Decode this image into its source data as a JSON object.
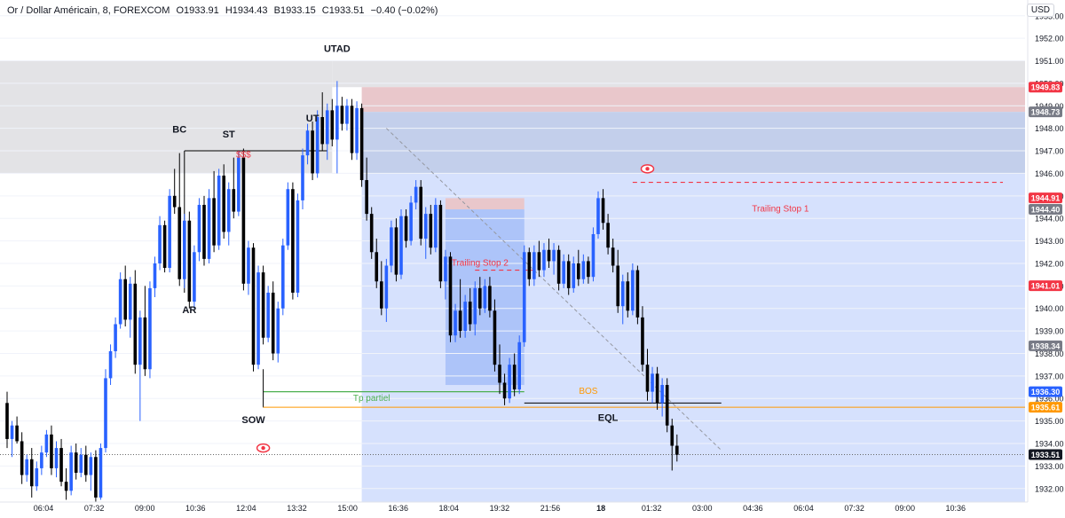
{
  "header": {
    "symbol": "Or / Dollar Américain, 8, FOREXCOM",
    "open": "O1933.91",
    "high": "H1934.43",
    "low": "B1933.15",
    "close": "C1933.51",
    "change": "−0.40 (−0.02%)"
  },
  "currency_button": "USD",
  "colors": {
    "up": "#2962ff",
    "down": "#000000",
    "supply_zone": "#e3e3e6",
    "stop_zone": "#e9c7cb",
    "blue_zone": "#d6e1fd",
    "blue_zone_dark": "#c3cfeb",
    "trade_box": "#9fbaf7",
    "trailing": "#f23645",
    "tp_line": "#4caf50",
    "bos_line": "#ff9800"
  },
  "chart_data": {
    "type": "candlestick",
    "ylim": [
      1931.4,
      1953.7
    ],
    "y_ticks": [
      1932,
      1933,
      1934,
      1935,
      1936,
      1937,
      1938,
      1939,
      1940,
      1941,
      1942,
      1943,
      1944,
      1945,
      1946,
      1947,
      1948,
      1949,
      1950,
      1951,
      1952,
      1953
    ],
    "x_ticks": [
      "06:04",
      "07:32",
      "09:00",
      "10:36",
      "12:04",
      "13:32",
      "15:00",
      "16:36",
      "18:04",
      "19:32",
      "21:56",
      "18",
      "01:32",
      "03:00",
      "04:36",
      "06:04",
      "07:32",
      "09:00",
      "10:36"
    ],
    "price_labels": [
      {
        "value": 1949.83,
        "text": "1949.83",
        "color": "#f23645"
      },
      {
        "value": 1948.73,
        "text": "1948.73",
        "color": "#787b86"
      },
      {
        "value": 1944.91,
        "text": "1944.91",
        "color": "#f23645"
      },
      {
        "value": 1944.4,
        "text": "1944.40",
        "color": "#787b86"
      },
      {
        "value": 1941.01,
        "text": "1941.01",
        "color": "#f23645"
      },
      {
        "value": 1938.34,
        "text": "1938.34",
        "color": "#787b86"
      },
      {
        "value": 1936.3,
        "text": "1936.30",
        "color": "#2962ff"
      },
      {
        "value": 1935.61,
        "text": "1935.61",
        "color": "#ff9800"
      },
      {
        "value": 1933.51,
        "text": "1933.51",
        "color": "#131722"
      }
    ],
    "annotations": [
      {
        "text": "UTAD",
        "value": 1951.4,
        "bar": 67
      },
      {
        "text": "UT",
        "value": 1948.3,
        "bar": 62
      },
      {
        "text": "BC",
        "value": 1947.8,
        "bar": 35
      },
      {
        "text": "ST",
        "value": 1947.6,
        "bar": 45
      },
      {
        "text": "AR",
        "value": 1939.8,
        "bar": 37
      },
      {
        "text": "SOW",
        "value": 1934.9,
        "bar": 50
      },
      {
        "text": "EQL",
        "value": 1935.0,
        "bar": 122
      },
      {
        "text": "$$$",
        "value": 1946.7,
        "bar": 48,
        "color": "#f23645"
      },
      {
        "text": "BOS",
        "value": 1936.2,
        "bar": 118,
        "color": "#ff9800"
      },
      {
        "text": "Tp partiel",
        "value": 1935.9,
        "bar": 74,
        "color": "#4caf50"
      },
      {
        "text": "Trailing Stop 2",
        "value": 1941.9,
        "bar": 96,
        "color": "#f23645"
      },
      {
        "text": "Trailing Stop 1",
        "value": 1944.3,
        "bar": 157,
        "color": "#f23645"
      }
    ],
    "candles": [
      [
        1935.8,
        1936.3,
        1933.8,
        1934.2
      ],
      [
        1934.2,
        1935.0,
        1933.4,
        1934.8
      ],
      [
        1934.8,
        1935.2,
        1934.0,
        1934.1
      ],
      [
        1934.1,
        1934.5,
        1932.2,
        1932.6
      ],
      [
        1932.6,
        1933.5,
        1932.3,
        1933.3
      ],
      [
        1933.3,
        1933.8,
        1931.6,
        1932.1
      ],
      [
        1932.1,
        1933.2,
        1931.9,
        1932.9
      ],
      [
        1932.9,
        1933.9,
        1932.6,
        1933.6
      ],
      [
        1933.6,
        1934.6,
        1933.4,
        1934.4
      ],
      [
        1934.4,
        1934.8,
        1932.6,
        1932.9
      ],
      [
        1932.9,
        1934.1,
        1932.5,
        1933.8
      ],
      [
        1933.8,
        1934.2,
        1932.1,
        1932.3
      ],
      [
        1932.3,
        1932.9,
        1931.5,
        1931.9
      ],
      [
        1931.9,
        1933.9,
        1931.7,
        1933.6
      ],
      [
        1933.6,
        1934.0,
        1932.4,
        1932.7
      ],
      [
        1932.7,
        1933.8,
        1932.5,
        1933.5
      ],
      [
        1933.5,
        1933.9,
        1932.3,
        1932.6
      ],
      [
        1932.6,
        1933.6,
        1931.9,
        1933.4
      ],
      [
        1933.4,
        1933.7,
        1931.3,
        1931.6
      ],
      [
        1931.6,
        1934.0,
        1931.5,
        1933.8
      ],
      [
        1933.8,
        1937.3,
        1933.6,
        1936.9
      ],
      [
        1936.9,
        1938.4,
        1936.6,
        1938.1
      ],
      [
        1938.1,
        1939.6,
        1937.8,
        1939.3
      ],
      [
        1939.3,
        1941.6,
        1939.1,
        1941.3
      ],
      [
        1941.3,
        1941.9,
        1939.2,
        1939.5
      ],
      [
        1939.5,
        1941.4,
        1938.7,
        1941.1
      ],
      [
        1941.1,
        1941.7,
        1937.1,
        1937.5
      ],
      [
        1937.5,
        1939.9,
        1935.0,
        1939.6
      ],
      [
        1939.6,
        1941.0,
        1937.0,
        1937.3
      ],
      [
        1937.3,
        1941.2,
        1936.9,
        1940.9
      ],
      [
        1940.9,
        1942.3,
        1940.5,
        1942.0
      ],
      [
        1942.0,
        1944.1,
        1941.7,
        1943.7
      ],
      [
        1943.7,
        1943.9,
        1941.6,
        1941.8
      ],
      [
        1941.8,
        1945.3,
        1941.6,
        1945.0
      ],
      [
        1945.0,
        1946.2,
        1944.2,
        1944.5
      ],
      [
        1944.5,
        1946.9,
        1941.0,
        1941.3
      ],
      [
        1941.3,
        1944.2,
        1940.9,
        1943.9
      ],
      [
        1943.9,
        1944.3,
        1940.0,
        1940.3
      ],
      [
        1940.3,
        1942.8,
        1940.0,
        1942.5
      ],
      [
        1942.5,
        1944.9,
        1942.1,
        1944.6
      ],
      [
        1944.6,
        1945.0,
        1941.9,
        1942.2
      ],
      [
        1942.2,
        1945.3,
        1942.0,
        1944.9
      ],
      [
        1944.9,
        1946.1,
        1942.5,
        1942.8
      ],
      [
        1942.8,
        1946.2,
        1942.6,
        1945.9
      ],
      [
        1945.9,
        1946.4,
        1943.1,
        1943.4
      ],
      [
        1943.4,
        1945.6,
        1942.8,
        1945.3
      ],
      [
        1945.3,
        1946.7,
        1944.0,
        1944.3
      ],
      [
        1944.3,
        1947.0,
        1944.1,
        1946.7
      ],
      [
        1946.7,
        1947.1,
        1940.8,
        1941.1
      ],
      [
        1941.1,
        1943.0,
        1940.6,
        1942.7
      ],
      [
        1942.7,
        1942.9,
        1937.2,
        1937.5
      ],
      [
        1937.5,
        1941.9,
        1937.3,
        1941.6
      ],
      [
        1941.6,
        1941.9,
        1938.4,
        1938.7
      ],
      [
        1938.7,
        1941.0,
        1938.5,
        1940.7
      ],
      [
        1940.7,
        1941.2,
        1937.7,
        1938.0
      ],
      [
        1938.0,
        1940.3,
        1937.6,
        1940.0
      ],
      [
        1940.0,
        1943.1,
        1939.7,
        1942.8
      ],
      [
        1942.8,
        1945.6,
        1942.6,
        1945.3
      ],
      [
        1945.3,
        1945.6,
        1940.4,
        1940.7
      ],
      [
        1940.7,
        1945.1,
        1940.5,
        1944.8
      ],
      [
        1944.8,
        1947.1,
        1944.4,
        1946.8
      ],
      [
        1946.8,
        1948.2,
        1946.4,
        1947.9
      ],
      [
        1947.9,
        1948.3,
        1945.7,
        1946.0
      ],
      [
        1946.0,
        1948.8,
        1945.8,
        1948.5
      ],
      [
        1948.5,
        1949.6,
        1947.0,
        1947.3
      ],
      [
        1947.3,
        1949.1,
        1946.6,
        1948.8
      ],
      [
        1948.8,
        1949.3,
        1947.2,
        1947.5
      ],
      [
        1947.5,
        1950.1,
        1946.0,
        1949.0
      ],
      [
        1949.0,
        1949.4,
        1947.9,
        1948.2
      ],
      [
        1948.2,
        1949.3,
        1947.9,
        1949.0
      ],
      [
        1949.0,
        1949.3,
        1946.6,
        1946.9
      ],
      [
        1946.9,
        1949.2,
        1946.6,
        1948.9
      ],
      [
        1948.9,
        1949.1,
        1945.4,
        1945.7
      ],
      [
        1945.7,
        1946.7,
        1943.9,
        1944.2
      ],
      [
        1944.2,
        1944.5,
        1942.2,
        1942.5
      ],
      [
        1942.5,
        1943.1,
        1940.9,
        1941.2
      ],
      [
        1941.2,
        1942.1,
        1939.7,
        1940.0
      ],
      [
        1940.0,
        1942.2,
        1939.4,
        1941.9
      ],
      [
        1941.9,
        1943.9,
        1941.6,
        1943.6
      ],
      [
        1943.6,
        1944.0,
        1941.2,
        1941.5
      ],
      [
        1941.5,
        1944.4,
        1941.3,
        1944.1
      ],
      [
        1944.1,
        1944.4,
        1942.7,
        1943.0
      ],
      [
        1943.0,
        1945.0,
        1942.8,
        1944.7
      ],
      [
        1944.7,
        1945.7,
        1944.4,
        1945.4
      ],
      [
        1945.4,
        1945.7,
        1942.8,
        1943.1
      ],
      [
        1943.1,
        1944.5,
        1942.2,
        1944.2
      ],
      [
        1944.2,
        1944.6,
        1942.4,
        1942.7
      ],
      [
        1942.7,
        1944.9,
        1942.5,
        1944.6
      ],
      [
        1944.6,
        1944.8,
        1940.9,
        1941.2
      ],
      [
        1941.2,
        1942.6,
        1940.4,
        1942.3
      ],
      [
        1942.3,
        1942.5,
        1938.5,
        1938.8
      ],
      [
        1938.8,
        1940.2,
        1938.5,
        1939.9
      ],
      [
        1939.9,
        1941.3,
        1938.7,
        1939.0
      ],
      [
        1939.0,
        1940.6,
        1938.7,
        1940.3
      ],
      [
        1940.3,
        1940.9,
        1939.0,
        1939.3
      ],
      [
        1939.3,
        1941.2,
        1938.8,
        1940.9
      ],
      [
        1940.9,
        1941.4,
        1939.7,
        1940.0
      ],
      [
        1940.0,
        1941.3,
        1939.8,
        1941.0
      ],
      [
        1941.0,
        1941.4,
        1939.6,
        1939.9
      ],
      [
        1939.9,
        1940.4,
        1937.2,
        1937.5
      ],
      [
        1937.5,
        1938.4,
        1936.2,
        1936.7
      ],
      [
        1936.7,
        1937.1,
        1935.7,
        1936.0
      ],
      [
        1936.0,
        1937.8,
        1935.8,
        1937.5
      ],
      [
        1937.5,
        1938.0,
        1936.1,
        1936.4
      ],
      [
        1936.4,
        1938.8,
        1936.2,
        1938.5
      ],
      [
        1938.5,
        1942.8,
        1938.3,
        1942.5
      ],
      [
        1942.5,
        1942.7,
        1941.0,
        1941.3
      ],
      [
        1941.3,
        1942.8,
        1941.0,
        1942.5
      ],
      [
        1942.5,
        1943.0,
        1941.4,
        1941.7
      ],
      [
        1941.7,
        1942.9,
        1941.4,
        1942.6
      ],
      [
        1942.6,
        1943.1,
        1941.8,
        1942.1
      ],
      [
        1942.1,
        1942.9,
        1941.5,
        1942.6
      ],
      [
        1942.6,
        1942.8,
        1940.8,
        1941.1
      ],
      [
        1941.1,
        1942.4,
        1940.9,
        1942.1
      ],
      [
        1942.1,
        1942.4,
        1940.6,
        1940.9
      ],
      [
        1940.9,
        1942.3,
        1940.7,
        1942.0
      ],
      [
        1942.0,
        1942.6,
        1941.0,
        1941.3
      ],
      [
        1941.3,
        1942.4,
        1941.1,
        1942.1
      ],
      [
        1942.1,
        1942.3,
        1941.1,
        1941.4
      ],
      [
        1941.4,
        1943.6,
        1941.2,
        1943.3
      ],
      [
        1943.3,
        1945.2,
        1943.1,
        1944.9
      ],
      [
        1944.9,
        1945.3,
        1943.5,
        1943.8
      ],
      [
        1943.8,
        1944.2,
        1942.4,
        1942.7
      ],
      [
        1942.7,
        1943.1,
        1941.6,
        1941.9
      ],
      [
        1941.9,
        1942.6,
        1939.8,
        1940.1
      ],
      [
        1940.1,
        1941.5,
        1939.3,
        1941.2
      ],
      [
        1941.2,
        1941.6,
        1939.6,
        1939.9
      ],
      [
        1939.9,
        1942.0,
        1939.7,
        1941.7
      ],
      [
        1941.7,
        1941.9,
        1939.3,
        1939.6
      ],
      [
        1939.6,
        1940.1,
        1937.2,
        1937.5
      ],
      [
        1937.5,
        1938.2,
        1935.9,
        1936.3
      ],
      [
        1936.3,
        1937.4,
        1935.8,
        1937.1
      ],
      [
        1937.1,
        1937.4,
        1935.5,
        1935.8
      ],
      [
        1935.8,
        1936.9,
        1935.2,
        1936.6
      ],
      [
        1936.6,
        1936.9,
        1934.5,
        1934.8
      ],
      [
        1934.8,
        1935.1,
        1932.8,
        1933.9
      ],
      [
        1933.9,
        1934.4,
        1933.2,
        1933.5
      ]
    ]
  }
}
